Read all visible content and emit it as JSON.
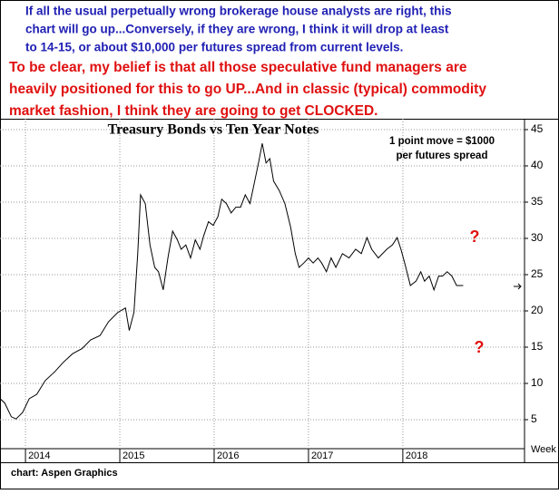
{
  "header": {
    "blue_lines": [
      "If all the usual perpetually wrong brokerage house analysts are right, this",
      "chart will go up...Conversely, if they are wrong, I think it will drop at least",
      "to 14-15, or about $10,000 per futures spread from current levels."
    ],
    "red_lines": [
      "To be clear, my belief is that all those speculative fund managers are",
      "heavily positioned for this to go UP...And in classic (typical) commodity",
      "market fashion, I think they are going to get CLOCKED."
    ]
  },
  "chart_data": {
    "type": "line",
    "title": "Treasury Bonds vs Ten Year Notes",
    "annotation_lines": [
      "1 point move = $1000",
      "per futures spread"
    ],
    "question_marks": [
      "?",
      "?"
    ],
    "x_axis_label": "Week",
    "x": [
      2013.73,
      2013.78,
      2013.85,
      2013.9,
      2013.97,
      2014.04,
      2014.12,
      2014.21,
      2014.31,
      2014.4,
      2014.5,
      2014.6,
      2014.69,
      2014.79,
      2014.88,
      2014.98,
      2015.06,
      2015.1,
      2015.15,
      2015.19,
      2015.22,
      2015.27,
      2015.32,
      2015.37,
      2015.41,
      2015.46,
      2015.51,
      2015.56,
      2015.61,
      2015.65,
      2015.7,
      2015.75,
      2015.8,
      2015.85,
      2015.89,
      2015.94,
      2015.99,
      2016.04,
      2016.08,
      2016.13,
      2016.18,
      2016.23,
      2016.28,
      2016.33,
      2016.38,
      2016.43,
      2016.47,
      2016.51,
      2016.55,
      2016.59,
      2016.63,
      2016.69,
      2016.75,
      2016.81,
      2016.86,
      2016.9,
      2016.95,
      2017.0,
      2017.05,
      2017.1,
      2017.14,
      2017.19,
      2017.24,
      2017.29,
      2017.36,
      2017.43,
      2017.5,
      2017.56,
      2017.62,
      2017.67,
      2017.74,
      2017.83,
      2017.89,
      2017.94,
      2017.98,
      2018.02,
      2018.08,
      2018.14,
      2018.19,
      2018.23,
      2018.28,
      2018.33,
      2018.38,
      2018.42,
      2018.47,
      2018.52,
      2018.57,
      2018.61,
      2018.64
    ],
    "series": [
      {
        "color": "#000000",
        "values": [
          7.9,
          7.3,
          5.4,
          5.1,
          6.0,
          7.9,
          8.5,
          10.4,
          11.6,
          12.9,
          14.1,
          14.8,
          16.0,
          16.6,
          18.5,
          19.8,
          20.4,
          17.3,
          19.8,
          27.9,
          36.0,
          34.8,
          29.1,
          26.0,
          25.4,
          22.9,
          27.3,
          31.0,
          29.8,
          28.5,
          29.1,
          27.3,
          29.8,
          28.5,
          30.4,
          32.3,
          31.8,
          33.0,
          35.4,
          34.8,
          33.5,
          34.3,
          34.3,
          36.0,
          34.8,
          37.9,
          40.4,
          43.1,
          40.4,
          41.0,
          37.9,
          36.6,
          34.8,
          31.6,
          27.9,
          26.0,
          26.6,
          27.3,
          26.6,
          27.3,
          26.6,
          25.4,
          27.3,
          26.0,
          27.9,
          27.3,
          28.5,
          27.9,
          30.1,
          28.5,
          27.3,
          28.5,
          29.1,
          30.1,
          28.5,
          26.6,
          23.5,
          24.1,
          25.4,
          24.1,
          24.8,
          22.9,
          24.8,
          24.8,
          25.4,
          24.8,
          23.5,
          23.5,
          23.5
        ]
      }
    ],
    "xlim": [
      2013.73,
      2019.29
    ],
    "xticks": [
      2014,
      2015,
      2016,
      2017,
      2018
    ],
    "ylim": [
      1,
      46
    ],
    "yticks": [
      5,
      10,
      15,
      20,
      25,
      30,
      35,
      40,
      45
    ],
    "grid": true
  },
  "footer": "chart: Aspen Graphics"
}
